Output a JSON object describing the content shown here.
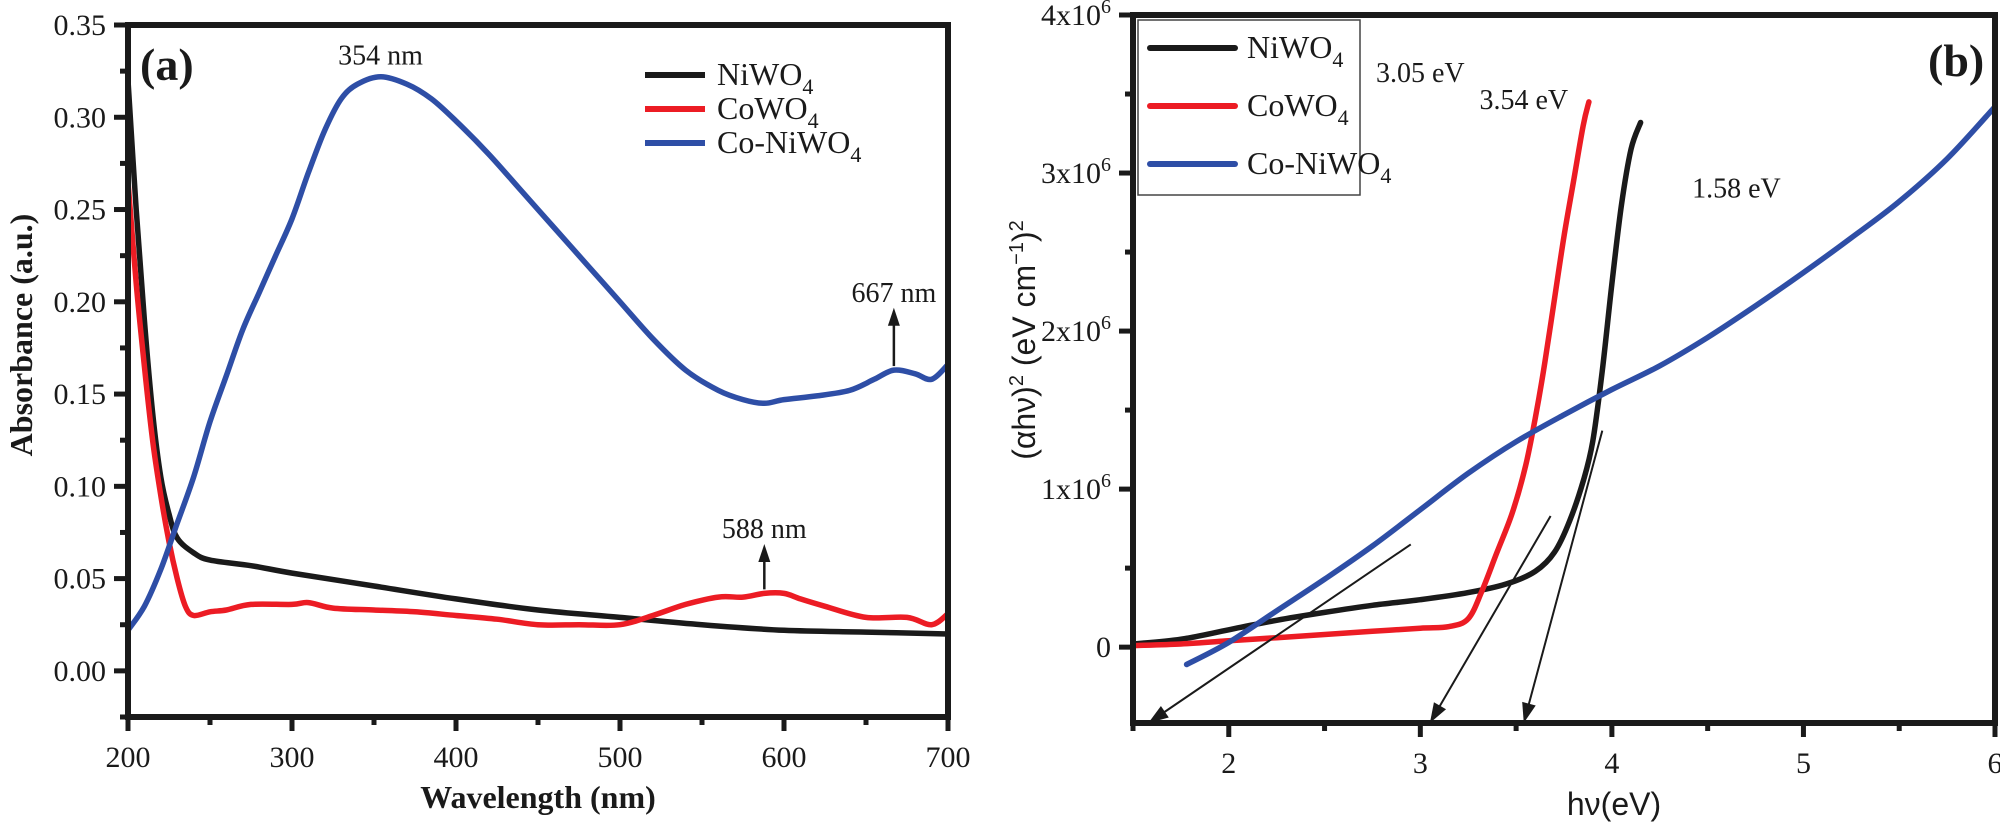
{
  "chart_data": [
    {
      "panel": "(a)",
      "type": "line",
      "title": "",
      "xlabel": "Wavelength (nm)",
      "ylabel": "Absorbance (a.u.)",
      "xlim": [
        200,
        700
      ],
      "ylim": [
        -0.025,
        0.35
      ],
      "xticks": [
        200,
        300,
        400,
        500,
        600,
        700
      ],
      "xtick_labels": [
        "200",
        "300",
        "400",
        "500",
        "600",
        "700"
      ],
      "yticks": [
        0.0,
        0.05,
        0.1,
        0.15,
        0.2,
        0.25,
        0.3,
        0.35
      ],
      "ytick_labels": [
        "0.00",
        "0.05",
        "0.10",
        "0.15",
        "0.20",
        "0.25",
        "0.30",
        "0.35"
      ],
      "grid": false,
      "legend_position": "top-right",
      "series": [
        {
          "name": "NiWO4",
          "label_main": "NiWO",
          "label_sub": "4",
          "color": "#1a1a1a",
          "x": [
            200,
            205,
            210,
            215,
            220,
            225,
            230,
            240,
            250,
            275,
            300,
            350,
            400,
            450,
            500,
            550,
            600,
            650,
            700
          ],
          "y": [
            0.32,
            0.25,
            0.19,
            0.14,
            0.105,
            0.085,
            0.072,
            0.064,
            0.06,
            0.057,
            0.053,
            0.046,
            0.039,
            0.033,
            0.029,
            0.025,
            0.022,
            0.021,
            0.02
          ]
        },
        {
          "name": "CoWO4",
          "label_main": "CoWO",
          "label_sub": "4",
          "color": "#ec1c24",
          "x": [
            200,
            205,
            210,
            215,
            220,
            225,
            230,
            235,
            240,
            250,
            260,
            275,
            300,
            310,
            325,
            350,
            375,
            400,
            425,
            450,
            475,
            500,
            520,
            540,
            560,
            575,
            588,
            600,
            610,
            625,
            650,
            675,
            690,
            700
          ],
          "y": [
            0.265,
            0.21,
            0.165,
            0.125,
            0.095,
            0.07,
            0.05,
            0.035,
            0.03,
            0.032,
            0.033,
            0.036,
            0.036,
            0.037,
            0.034,
            0.033,
            0.032,
            0.03,
            0.028,
            0.025,
            0.025,
            0.025,
            0.03,
            0.036,
            0.04,
            0.04,
            0.042,
            0.042,
            0.039,
            0.035,
            0.029,
            0.029,
            0.025,
            0.031
          ]
        },
        {
          "name": "Co-NiWO4",
          "label_main": "Co-NiWO",
          "label_sub": "4",
          "color": "#2e4ea6",
          "x": [
            200,
            210,
            220,
            230,
            240,
            250,
            260,
            270,
            280,
            290,
            300,
            310,
            320,
            330,
            340,
            354,
            370,
            385,
            400,
            420,
            440,
            460,
            480,
            500,
            520,
            540,
            560,
            575,
            588,
            600,
            620,
            640,
            655,
            667,
            680,
            690,
            700
          ],
          "y": [
            0.022,
            0.035,
            0.055,
            0.08,
            0.105,
            0.135,
            0.16,
            0.185,
            0.205,
            0.225,
            0.245,
            0.27,
            0.293,
            0.31,
            0.318,
            0.322,
            0.318,
            0.31,
            0.298,
            0.28,
            0.26,
            0.24,
            0.22,
            0.2,
            0.18,
            0.163,
            0.152,
            0.147,
            0.145,
            0.147,
            0.149,
            0.152,
            0.158,
            0.163,
            0.161,
            0.158,
            0.166
          ]
        }
      ],
      "annotations": [
        {
          "text": "354 nm",
          "x": 354,
          "y": 0.322,
          "arrow": false
        },
        {
          "text": "667 nm",
          "x": 667,
          "y": 0.163,
          "arrow": true,
          "text_y": 0.2
        },
        {
          "text": "588 nm",
          "x": 588,
          "y": 0.042,
          "arrow": true,
          "text_y": 0.072
        }
      ]
    },
    {
      "panel": "(b)",
      "type": "line",
      "title": "",
      "xlabel": "hν(eV)",
      "ylabel_parts": {
        "a": "(αhν)",
        "sup1": "2",
        "b": " (eV cm",
        "sup2": "−1",
        "c": ")",
        "sup3": "2"
      },
      "ylabel": "(αhν)^2 (eV cm^-1)^2",
      "xlim": [
        1.5,
        6
      ],
      "ylim": [
        -480000,
        4000000
      ],
      "xticks": [
        2,
        3,
        4,
        5,
        6
      ],
      "xtick_labels": [
        "2",
        "3",
        "4",
        "5",
        "6"
      ],
      "yticks": [
        0,
        1000000,
        2000000,
        3000000,
        4000000
      ],
      "ytick_labels": [
        {
          "base": "0",
          "exp": ""
        },
        {
          "base": "1x10",
          "exp": "6"
        },
        {
          "base": "2x10",
          "exp": "6"
        },
        {
          "base": "3x10",
          "exp": "6"
        },
        {
          "base": "4x10",
          "exp": "6"
        }
      ],
      "grid": false,
      "legend_position": "top-left",
      "series": [
        {
          "name": "NiWO4",
          "label_main": "NiWO",
          "label_sub": "4",
          "color": "#1a1a1a",
          "x": [
            1.5,
            1.75,
            2.0,
            2.25,
            2.5,
            2.75,
            3.0,
            3.25,
            3.45,
            3.6,
            3.7,
            3.78,
            3.85,
            3.9,
            3.95,
            4.0,
            4.05,
            4.1,
            4.15
          ],
          "y": [
            20000,
            50000,
            110000,
            170000,
            220000,
            265000,
            300000,
            345000,
            400000,
            480000,
            600000,
            800000,
            1050000,
            1300000,
            1750000,
            2300000,
            2800000,
            3150000,
            3320000
          ]
        },
        {
          "name": "CoWO4",
          "label_main": "CoWO",
          "label_sub": "4",
          "color": "#ec1c24",
          "x": [
            1.5,
            1.75,
            2.0,
            2.25,
            2.5,
            2.75,
            3.0,
            3.15,
            3.25,
            3.32,
            3.4,
            3.48,
            3.55,
            3.6,
            3.65,
            3.7,
            3.75,
            3.8,
            3.85,
            3.88
          ],
          "y": [
            10000,
            20000,
            40000,
            60000,
            80000,
            100000,
            120000,
            130000,
            180000,
            350000,
            600000,
            850000,
            1150000,
            1450000,
            1800000,
            2200000,
            2600000,
            2950000,
            3300000,
            3450000
          ]
        },
        {
          "name": "Co-NiWO4",
          "label_main": "Co-NiWO",
          "label_sub": "4",
          "color": "#2e4ea6",
          "x": [
            1.78,
            2.0,
            2.25,
            2.5,
            2.75,
            3.0,
            3.25,
            3.5,
            3.75,
            4.0,
            4.25,
            4.5,
            4.75,
            5.0,
            5.25,
            5.5,
            5.75,
            6.0
          ],
          "y": [
            -110000,
            30000,
            230000,
            430000,
            640000,
            870000,
            1100000,
            1300000,
            1470000,
            1630000,
            1780000,
            1960000,
            2160000,
            2370000,
            2590000,
            2820000,
            3090000,
            3420000
          ]
        }
      ],
      "extrapolation_lines": [
        {
          "from": [
            2.95,
            650000
          ],
          "to": [
            1.58,
            -480000
          ],
          "color": "#1a1a1a"
        },
        {
          "from": [
            3.68,
            830000
          ],
          "to": [
            3.05,
            -480000
          ],
          "color": "#1a1a1a"
        },
        {
          "from": [
            3.95,
            1370000
          ],
          "to": [
            3.54,
            -480000
          ],
          "color": "#1a1a1a"
        }
      ],
      "annotations": [
        {
          "text": "3.05 eV",
          "x": 3.0,
          "y": 3500000
        },
        {
          "text": "3.54 eV",
          "x": 3.54,
          "y": 3330000
        },
        {
          "text": "1.58 eV",
          "x": 4.65,
          "y": 2770000
        }
      ]
    }
  ]
}
